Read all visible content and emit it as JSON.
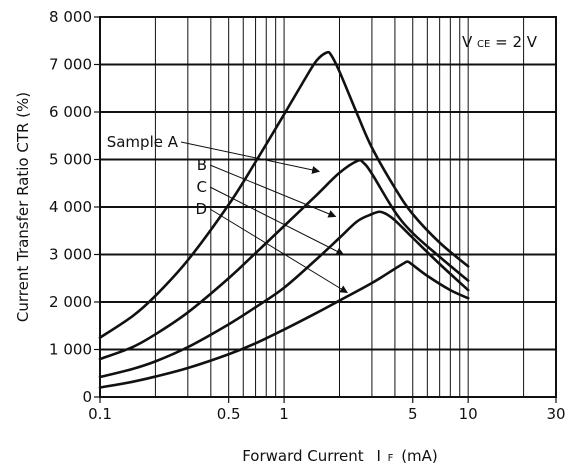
{
  "chart_data": {
    "type": "line",
    "title": "",
    "xlabel_main": "Forward Current",
    "xlabel_symbol": "I",
    "xlabel_subscript": "F",
    "xlabel_unit": "(mA)",
    "ylabel": "Current Transfer Ratio  CTR (%)",
    "annotation_main": "V",
    "annotation_subscript": "CE",
    "annotation_rest": " = 2 V",
    "x_scale": "log",
    "xlim": [
      0.1,
      30
    ],
    "ylim": [
      0,
      8000
    ],
    "grid": true,
    "x_ticks": [
      {
        "value": 0.1,
        "label": "0.1"
      },
      {
        "value": 0.5,
        "label": "0.5"
      },
      {
        "value": 1,
        "label": "1"
      },
      {
        "value": 5,
        "label": "5"
      },
      {
        "value": 10,
        "label": "10"
      },
      {
        "value": 30,
        "label": "30"
      }
    ],
    "x_grid": [
      0.1,
      0.2,
      0.3,
      0.4,
      0.5,
      0.6,
      0.7,
      0.8,
      0.9,
      1,
      2,
      3,
      4,
      5,
      6,
      7,
      8,
      9,
      10,
      20,
      30
    ],
    "y_ticks": [
      {
        "value": 0,
        "label": "0"
      },
      {
        "value": 1000,
        "label": "1 000"
      },
      {
        "value": 2000,
        "label": "2 000"
      },
      {
        "value": 3000,
        "label": "3 000"
      },
      {
        "value": 4000,
        "label": "4 000"
      },
      {
        "value": 5000,
        "label": "5 000"
      },
      {
        "value": 6000,
        "label": "6 000"
      },
      {
        "value": 7000,
        "label": "7 000"
      },
      {
        "value": 8000,
        "label": "8 000"
      }
    ],
    "series": [
      {
        "name": "Sample A",
        "points": [
          [
            0.1,
            1250
          ],
          [
            0.15,
            1700
          ],
          [
            0.2,
            2130
          ],
          [
            0.3,
            2880
          ],
          [
            0.5,
            4050
          ],
          [
            0.7,
            4950
          ],
          [
            1.0,
            5950
          ],
          [
            1.3,
            6700
          ],
          [
            1.5,
            7080
          ],
          [
            1.7,
            7250
          ],
          [
            1.8,
            7200
          ],
          [
            2.0,
            6850
          ],
          [
            2.5,
            5950
          ],
          [
            3.0,
            5250
          ],
          [
            4.0,
            4400
          ],
          [
            5.0,
            3850
          ],
          [
            7.0,
            3250
          ],
          [
            10,
            2750
          ]
        ]
      },
      {
        "name": "B",
        "points": [
          [
            0.1,
            800
          ],
          [
            0.15,
            1050
          ],
          [
            0.2,
            1320
          ],
          [
            0.3,
            1780
          ],
          [
            0.5,
            2500
          ],
          [
            0.7,
            3030
          ],
          [
            1.0,
            3600
          ],
          [
            1.5,
            4250
          ],
          [
            2.0,
            4720
          ],
          [
            2.5,
            4970
          ],
          [
            2.7,
            4930
          ],
          [
            3.0,
            4700
          ],
          [
            4.0,
            3900
          ],
          [
            5.0,
            3450
          ],
          [
            7.0,
            2950
          ],
          [
            10,
            2450
          ]
        ]
      },
      {
        "name": "C",
        "points": [
          [
            0.1,
            420
          ],
          [
            0.15,
            590
          ],
          [
            0.2,
            750
          ],
          [
            0.3,
            1050
          ],
          [
            0.5,
            1530
          ],
          [
            0.7,
            1890
          ],
          [
            1.0,
            2300
          ],
          [
            1.5,
            2900
          ],
          [
            2.0,
            3350
          ],
          [
            2.5,
            3700
          ],
          [
            3.0,
            3850
          ],
          [
            3.3,
            3900
          ],
          [
            3.6,
            3850
          ],
          [
            4.0,
            3720
          ],
          [
            5.0,
            3350
          ],
          [
            7.0,
            2800
          ],
          [
            10,
            2250
          ]
        ]
      },
      {
        "name": "D",
        "points": [
          [
            0.1,
            200
          ],
          [
            0.15,
            320
          ],
          [
            0.2,
            430
          ],
          [
            0.3,
            610
          ],
          [
            0.5,
            900
          ],
          [
            0.7,
            1130
          ],
          [
            1.0,
            1420
          ],
          [
            1.5,
            1770
          ],
          [
            2.0,
            2030
          ],
          [
            3.0,
            2400
          ],
          [
            4.0,
            2700
          ],
          [
            4.5,
            2820
          ],
          [
            4.7,
            2850
          ],
          [
            5.0,
            2780
          ],
          [
            6.0,
            2550
          ],
          [
            8.0,
            2250
          ],
          [
            10,
            2080
          ]
        ]
      }
    ],
    "annotations": [
      {
        "text": "Sample A",
        "series": 0,
        "target": [
          1.55,
          4750
        ]
      },
      {
        "text": "B",
        "series": 1,
        "target": [
          1.9,
          3800
        ]
      },
      {
        "text": "C",
        "series": 2,
        "target": [
          2.1,
          3000
        ]
      },
      {
        "text": "D",
        "series": 3,
        "target": [
          2.2,
          2200
        ]
      }
    ]
  }
}
